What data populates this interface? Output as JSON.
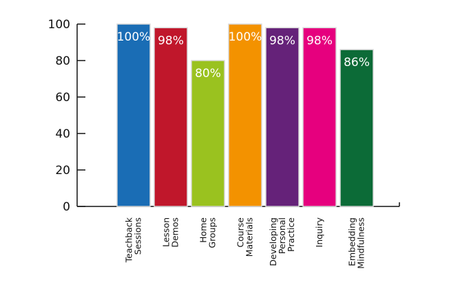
{
  "chart_data": {
    "type": "bar",
    "title": "",
    "xlabel": "",
    "ylabel": "",
    "ylim": [
      0,
      100
    ],
    "yticks": [
      0,
      20,
      40,
      60,
      80,
      100
    ],
    "grid": false,
    "categories": [
      [
        "Teachback",
        "Sessions"
      ],
      [
        "Lesson",
        "Demos"
      ],
      [
        "Home",
        "Groups"
      ],
      [
        "Course",
        "Materials"
      ],
      [
        "Developing",
        "Personal",
        "Practice"
      ],
      [
        "Inquiry"
      ],
      [
        "Embedding",
        "Mindfulness"
      ]
    ],
    "values": [
      100,
      98,
      80,
      100,
      98,
      98,
      86
    ],
    "data_labels": [
      "100%",
      "98%",
      "80%",
      "100%",
      "98%",
      "98%",
      "86%"
    ],
    "colors": [
      "#1a6db5",
      "#c0172b",
      "#9ac21f",
      "#f39200",
      "#652279",
      "#e6007e",
      "#0c6b37"
    ]
  }
}
